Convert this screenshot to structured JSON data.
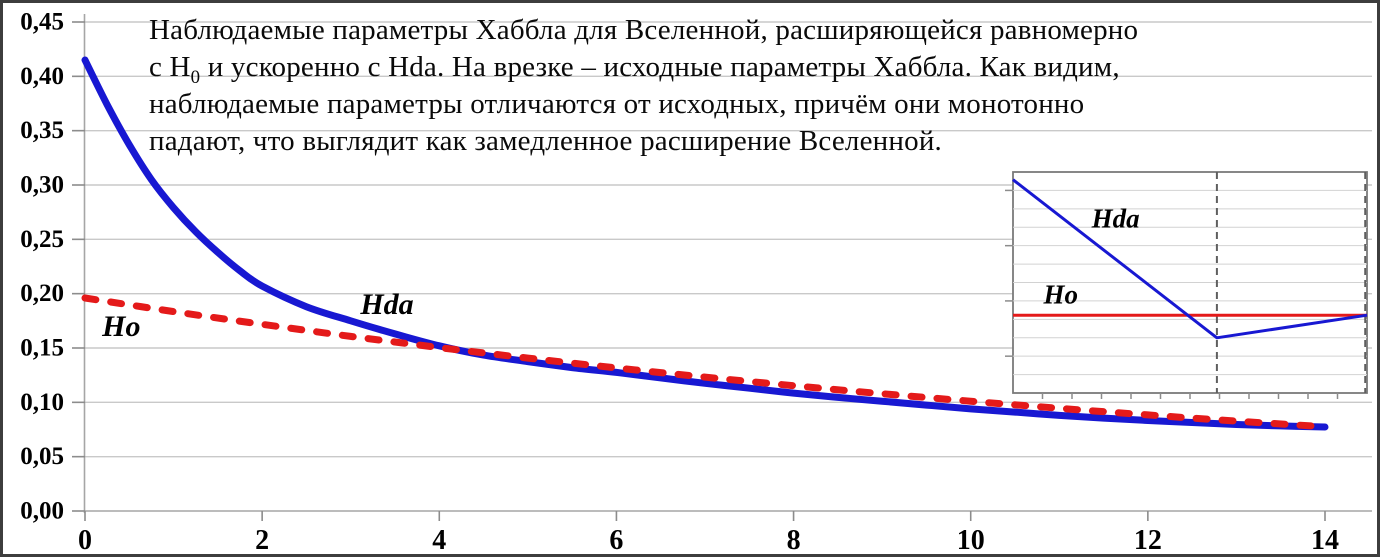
{
  "figure": {
    "title_lines": [
      {
        "pre": "Наблюдаемые параметры Хаббла для Вселенной, расширяющейся равномерно",
        "sub": "",
        "post": ""
      },
      {
        "pre": "с H",
        "sub": "0",
        "post": " и ускоренно с Hda. На врезке – исходные параметры Хаббла. Как видим,"
      },
      {
        "pre": "наблюдаемые параметры отличаются от исходных, причём они монотонно",
        "sub": "",
        "post": ""
      },
      {
        "pre": "падают, что выглядит как замедленное расширение Вселенной.",
        "sub": "",
        "post": ""
      }
    ]
  },
  "colors": {
    "hda": "#1818d2",
    "ho": "#e41a1a",
    "grid": "#c9c9c9",
    "axis": "#a6a6a6",
    "tick": "#8c8c8c",
    "text": "#000000",
    "inset_border": "#7a7a7a",
    "inset_grid": "#d2d2d2",
    "inset_dash": "#5f5f5f",
    "frame": "#3d3d3d"
  },
  "chart_data": [
    {
      "type": "line",
      "title": "Наблюдаемые параметры Хаббла для Вселенной, расширяющейся равномерно с H0 и ускоренно с Hda. На врезке – исходные параметры Хаббла. Как видим, наблюдаемые параметры отличаются от исходных, причём они монотонно падают, что выглядит как замедленное расширение Вселенной.",
      "xlabel": "",
      "ylabel": "",
      "xlim": [
        0,
        14
      ],
      "ylim": [
        0,
        0.45
      ],
      "x_ticks": [
        "0",
        "2",
        "4",
        "6",
        "8",
        "10",
        "12",
        "14"
      ],
      "x_tick_values": [
        0,
        2,
        4,
        6,
        8,
        10,
        12,
        14
      ],
      "y_ticks": [
        "0,00",
        "0,05",
        "0,10",
        "0,15",
        "0,20",
        "0,25",
        "0,30",
        "0,35",
        "0,40",
        "0,45"
      ],
      "y_tick_values": [
        0,
        0.05,
        0.1,
        0.15,
        0.2,
        0.25,
        0.3,
        0.35,
        0.4,
        0.45
      ],
      "grid": "horizontal",
      "legend_position": "inline-labels",
      "series": [
        {
          "name": "Hda",
          "color_key": "hda",
          "line_style": "solid",
          "points": [
            [
              0,
              0.415
            ],
            [
              0.25,
              0.374
            ],
            [
              0.5,
              0.337
            ],
            [
              0.75,
              0.305
            ],
            [
              1,
              0.279
            ],
            [
              1.25,
              0.257
            ],
            [
              1.5,
              0.238
            ],
            [
              1.75,
              0.221
            ],
            [
              2,
              0.207
            ],
            [
              2.5,
              0.188
            ],
            [
              3,
              0.175
            ],
            [
              3.5,
              0.163
            ],
            [
              4,
              0.152
            ],
            [
              4.5,
              0.1435
            ],
            [
              5,
              0.1375
            ],
            [
              5.5,
              0.132
            ],
            [
              6,
              0.1275
            ],
            [
              6.5,
              0.1225
            ],
            [
              7,
              0.1175
            ],
            [
              7.5,
              0.113
            ],
            [
              8,
              0.1085
            ],
            [
              8.5,
              0.1045
            ],
            [
              9,
              0.101
            ],
            [
              9.5,
              0.0975
            ],
            [
              10,
              0.094
            ],
            [
              10.5,
              0.091
            ],
            [
              11,
              0.088
            ],
            [
              11.5,
              0.0855
            ],
            [
              12,
              0.0833
            ],
            [
              12.5,
              0.0814
            ],
            [
              13,
              0.0796
            ],
            [
              13.5,
              0.0783
            ],
            [
              14,
              0.0773
            ]
          ]
        },
        {
          "name": "Ho",
          "color_key": "ho",
          "line_style": "dashed",
          "points": [
            [
              0,
              0.196
            ],
            [
              1,
              0.1835
            ],
            [
              2,
              0.1718
            ],
            [
              3,
              0.1607
            ],
            [
              4,
              0.1504
            ],
            [
              5,
              0.1407
            ],
            [
              6,
              0.1317
            ],
            [
              7,
              0.1232
            ],
            [
              8,
              0.1153
            ],
            [
              9,
              0.1079
            ],
            [
              10,
              0.101
            ],
            [
              11,
              0.0945
            ],
            [
              12,
              0.0884
            ],
            [
              13,
              0.0827
            ],
            [
              14,
              0.0775
            ]
          ]
        }
      ],
      "annotations": [
        {
          "text": "Hda",
          "x": 3.41,
          "y": 0.19
        },
        {
          "text": "Ho",
          "x": 0.41,
          "y": 0.17
        }
      ]
    },
    {
      "type": "line",
      "role": "inset",
      "note": "inset has no numeric axis labels; coordinates are fractions of inset width/height",
      "series": [
        {
          "name": "Hda",
          "color_key": "hda",
          "points_rel": [
            [
              0,
              0.035
            ],
            [
              0.576,
              0.75
            ],
            [
              1,
              0.648
            ]
          ]
        },
        {
          "name": "Ho",
          "color_key": "ho",
          "points_rel": [
            [
              0,
              0.648
            ],
            [
              1,
              0.648
            ]
          ]
        }
      ],
      "vlines_rel": [
        0.576,
        0.995
      ],
      "annotations": [
        {
          "text": "Hda",
          "rx": 0.29,
          "ry": 0.21
        },
        {
          "text": "Ho",
          "rx": 0.135,
          "ry": 0.555
        }
      ]
    }
  ]
}
